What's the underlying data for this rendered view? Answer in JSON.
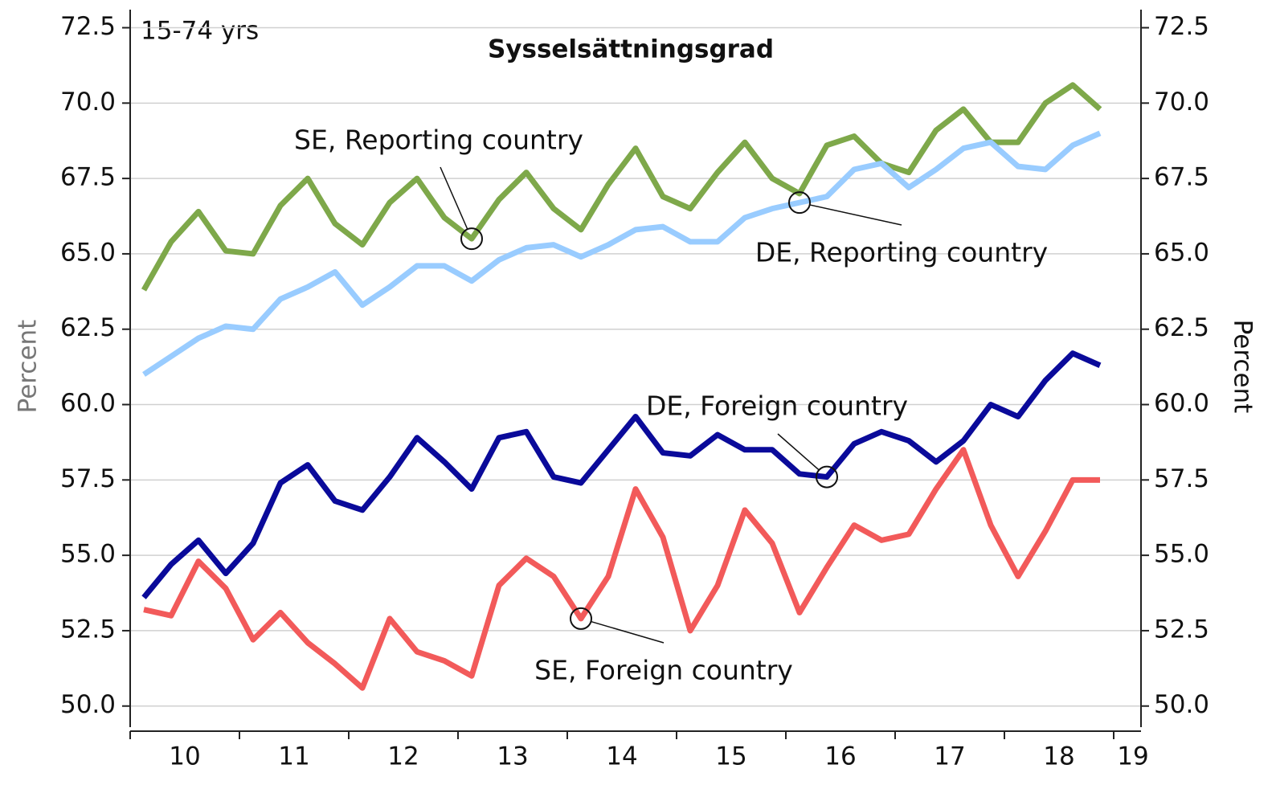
{
  "chart_data": {
    "type": "line",
    "title": "Sysselsättningsgrad",
    "subtitle": "15-74 yrs",
    "ylabel": "Percent",
    "y2label": "Percent",
    "x": [
      10.125,
      10.375,
      10.625,
      10.875,
      11.125,
      11.375,
      11.625,
      11.875,
      12.125,
      12.375,
      12.625,
      12.875,
      13.125,
      13.375,
      13.625,
      13.875,
      14.125,
      14.375,
      14.625,
      14.875,
      15.125,
      15.375,
      15.625,
      15.875,
      16.125,
      16.375,
      16.625,
      16.875,
      17.125,
      17.375,
      17.625,
      17.875,
      18.125,
      18.375,
      18.625,
      18.875
    ],
    "xlim": [
      10,
      19.25
    ],
    "xticks": [
      10,
      11,
      12,
      13,
      14,
      15,
      16,
      17,
      18,
      19
    ],
    "ylim": [
      49.3,
      73.1
    ],
    "yticks": [
      {
        "value": 50,
        "label": "50.0"
      },
      {
        "value": 52.5,
        "label": "52.5"
      },
      {
        "value": 55,
        "label": "55.0"
      },
      {
        "value": 57.5,
        "label": "57.5"
      },
      {
        "value": 60,
        "label": "60.0"
      },
      {
        "value": 62.5,
        "label": "62.5"
      },
      {
        "value": 65,
        "label": "65.0"
      },
      {
        "value": 67.5,
        "label": "67.5"
      },
      {
        "value": 70,
        "label": "70.0"
      },
      {
        "value": 72.5,
        "label": "72.5"
      }
    ],
    "y2lim": [
      49.3,
      73.1
    ],
    "y2ticks": [
      {
        "value": 50,
        "label": "50.0"
      },
      {
        "value": 52.5,
        "label": "52.5"
      },
      {
        "value": 55,
        "label": "55.0"
      },
      {
        "value": 57.5,
        "label": "57.5"
      },
      {
        "value": 60,
        "label": "60.0"
      },
      {
        "value": 62.5,
        "label": "62.5"
      },
      {
        "value": 65,
        "label": "65.0"
      },
      {
        "value": 67.5,
        "label": "67.5"
      },
      {
        "value": 70,
        "label": "70.0"
      },
      {
        "value": 72.5,
        "label": "72.5"
      }
    ],
    "grid": true,
    "series": [
      {
        "name": "SE, Reporting country",
        "color": "#7ea84a",
        "values": [
          63.8,
          65.4,
          66.4,
          65.1,
          65.0,
          66.6,
          67.5,
          66.0,
          65.3,
          66.7,
          67.5,
          66.2,
          65.5,
          66.8,
          67.7,
          66.5,
          65.8,
          67.3,
          68.5,
          66.9,
          66.5,
          67.7,
          68.7,
          67.5,
          67.0,
          68.6,
          68.9,
          68.0,
          67.7,
          69.1,
          69.8,
          68.7,
          68.7,
          70.0,
          70.6,
          69.8
        ]
      },
      {
        "name": "DE, Reporting country",
        "color": "#99ccff",
        "values": [
          61.0,
          61.6,
          62.2,
          62.6,
          62.5,
          63.5,
          63.9,
          64.4,
          63.3,
          63.9,
          64.6,
          64.6,
          64.1,
          64.8,
          65.2,
          65.3,
          64.9,
          65.3,
          65.8,
          65.9,
          65.4,
          65.4,
          66.2,
          66.5,
          66.7,
          66.9,
          67.8,
          68.0,
          67.2,
          67.8,
          68.5,
          68.7,
          67.9,
          67.8,
          68.6,
          69.0
        ]
      },
      {
        "name": "DE, Foreign country",
        "color": "#0a0a9a",
        "values": [
          53.6,
          54.7,
          55.5,
          54.4,
          55.4,
          57.4,
          58.0,
          56.8,
          56.5,
          57.6,
          58.9,
          58.1,
          57.2,
          58.9,
          59.1,
          57.6,
          57.4,
          58.5,
          59.6,
          58.4,
          58.3,
          59.0,
          58.5,
          58.5,
          57.7,
          57.6,
          58.7,
          59.1,
          58.8,
          58.1,
          58.8,
          60.0,
          59.6,
          60.8,
          61.7,
          61.3
        ]
      },
      {
        "name": "SE, Foreign country",
        "color": "#f25a5a",
        "values": [
          53.2,
          53.0,
          54.8,
          53.9,
          52.2,
          53.1,
          52.1,
          51.4,
          50.6,
          52.9,
          51.8,
          51.5,
          51.0,
          54.0,
          54.9,
          54.3,
          52.9,
          54.3,
          57.2,
          55.6,
          52.5,
          54.0,
          56.5,
          55.4,
          53.1,
          54.6,
          56.0,
          55.5,
          55.7,
          57.2,
          58.5,
          56.0,
          54.3,
          55.8,
          57.5,
          57.5
        ]
      }
    ]
  }
}
